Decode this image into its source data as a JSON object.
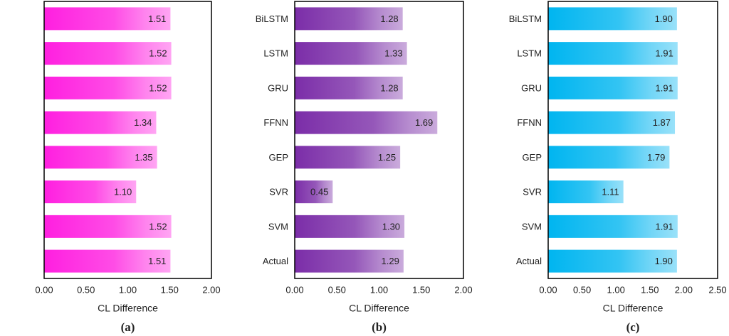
{
  "chart_data": [
    {
      "type": "bar",
      "orientation": "horizontal",
      "caption": "(a)",
      "xlabel": "CL Difference",
      "categories": [
        null,
        null,
        null,
        null,
        null,
        null,
        null,
        null
      ],
      "values": [
        1.51,
        1.52,
        1.52,
        1.34,
        1.35,
        1.1,
        1.52,
        1.51
      ],
      "value_labels": [
        "1.51",
        "1.52",
        "1.52",
        "1.34",
        "1.35",
        "1.10",
        "1.52",
        "1.51"
      ],
      "color": "#ff1fe0",
      "xlim": [
        0,
        2
      ],
      "xticks": [
        {
          "value": 0,
          "label": "0.00"
        },
        {
          "value": 0.5,
          "label": "0.50"
        },
        {
          "value": 1,
          "label": "1.00"
        },
        {
          "value": 1.5,
          "label": "1.50"
        },
        {
          "value": 2,
          "label": "2.00"
        }
      ]
    },
    {
      "type": "bar",
      "orientation": "horizontal",
      "caption": "(b)",
      "xlabel": "CL Difference",
      "categories": [
        "BiLSTM",
        "LSTM",
        "GRU",
        "FFNN",
        "GEP",
        "SVR",
        "SVM",
        "Actual"
      ],
      "values": [
        1.28,
        1.33,
        1.28,
        1.69,
        1.25,
        0.45,
        1.3,
        1.29
      ],
      "value_labels": [
        "1.28",
        "1.33",
        "1.28",
        "1.69",
        "1.25",
        "0.45",
        "1.30",
        "1.29"
      ],
      "color": "#7b2da8",
      "xlim": [
        0,
        2
      ],
      "xticks": [
        {
          "value": 0,
          "label": "0.00"
        },
        {
          "value": 0.5,
          "label": "0.50"
        },
        {
          "value": 1,
          "label": "1.00"
        },
        {
          "value": 1.5,
          "label": "1.50"
        },
        {
          "value": 2,
          "label": "2.00"
        }
      ]
    },
    {
      "type": "bar",
      "orientation": "horizontal",
      "caption": "(c)",
      "xlabel": "CL Difference",
      "categories": [
        "BiLSTM",
        "LSTM",
        "GRU",
        "FFNN",
        "GEP",
        "SVR",
        "SVM",
        "Actual"
      ],
      "values": [
        1.9,
        1.91,
        1.91,
        1.87,
        1.79,
        1.11,
        1.91,
        1.9
      ],
      "value_labels": [
        "1.90",
        "1.91",
        "1.91",
        "1.87",
        "1.79",
        "1.11",
        "1.91",
        "1.90"
      ],
      "color": "#00b5f0",
      "xlim": [
        0,
        2.5
      ],
      "xticks": [
        {
          "value": 0,
          "label": "0.00"
        },
        {
          "value": 0.5,
          "label": "0.50"
        },
        {
          "value": 1,
          "label": "1.00"
        },
        {
          "value": 1.5,
          "label": "1.50"
        },
        {
          "value": 2,
          "label": "2.00"
        },
        {
          "value": 2.5,
          "label": "2.50"
        }
      ]
    }
  ]
}
